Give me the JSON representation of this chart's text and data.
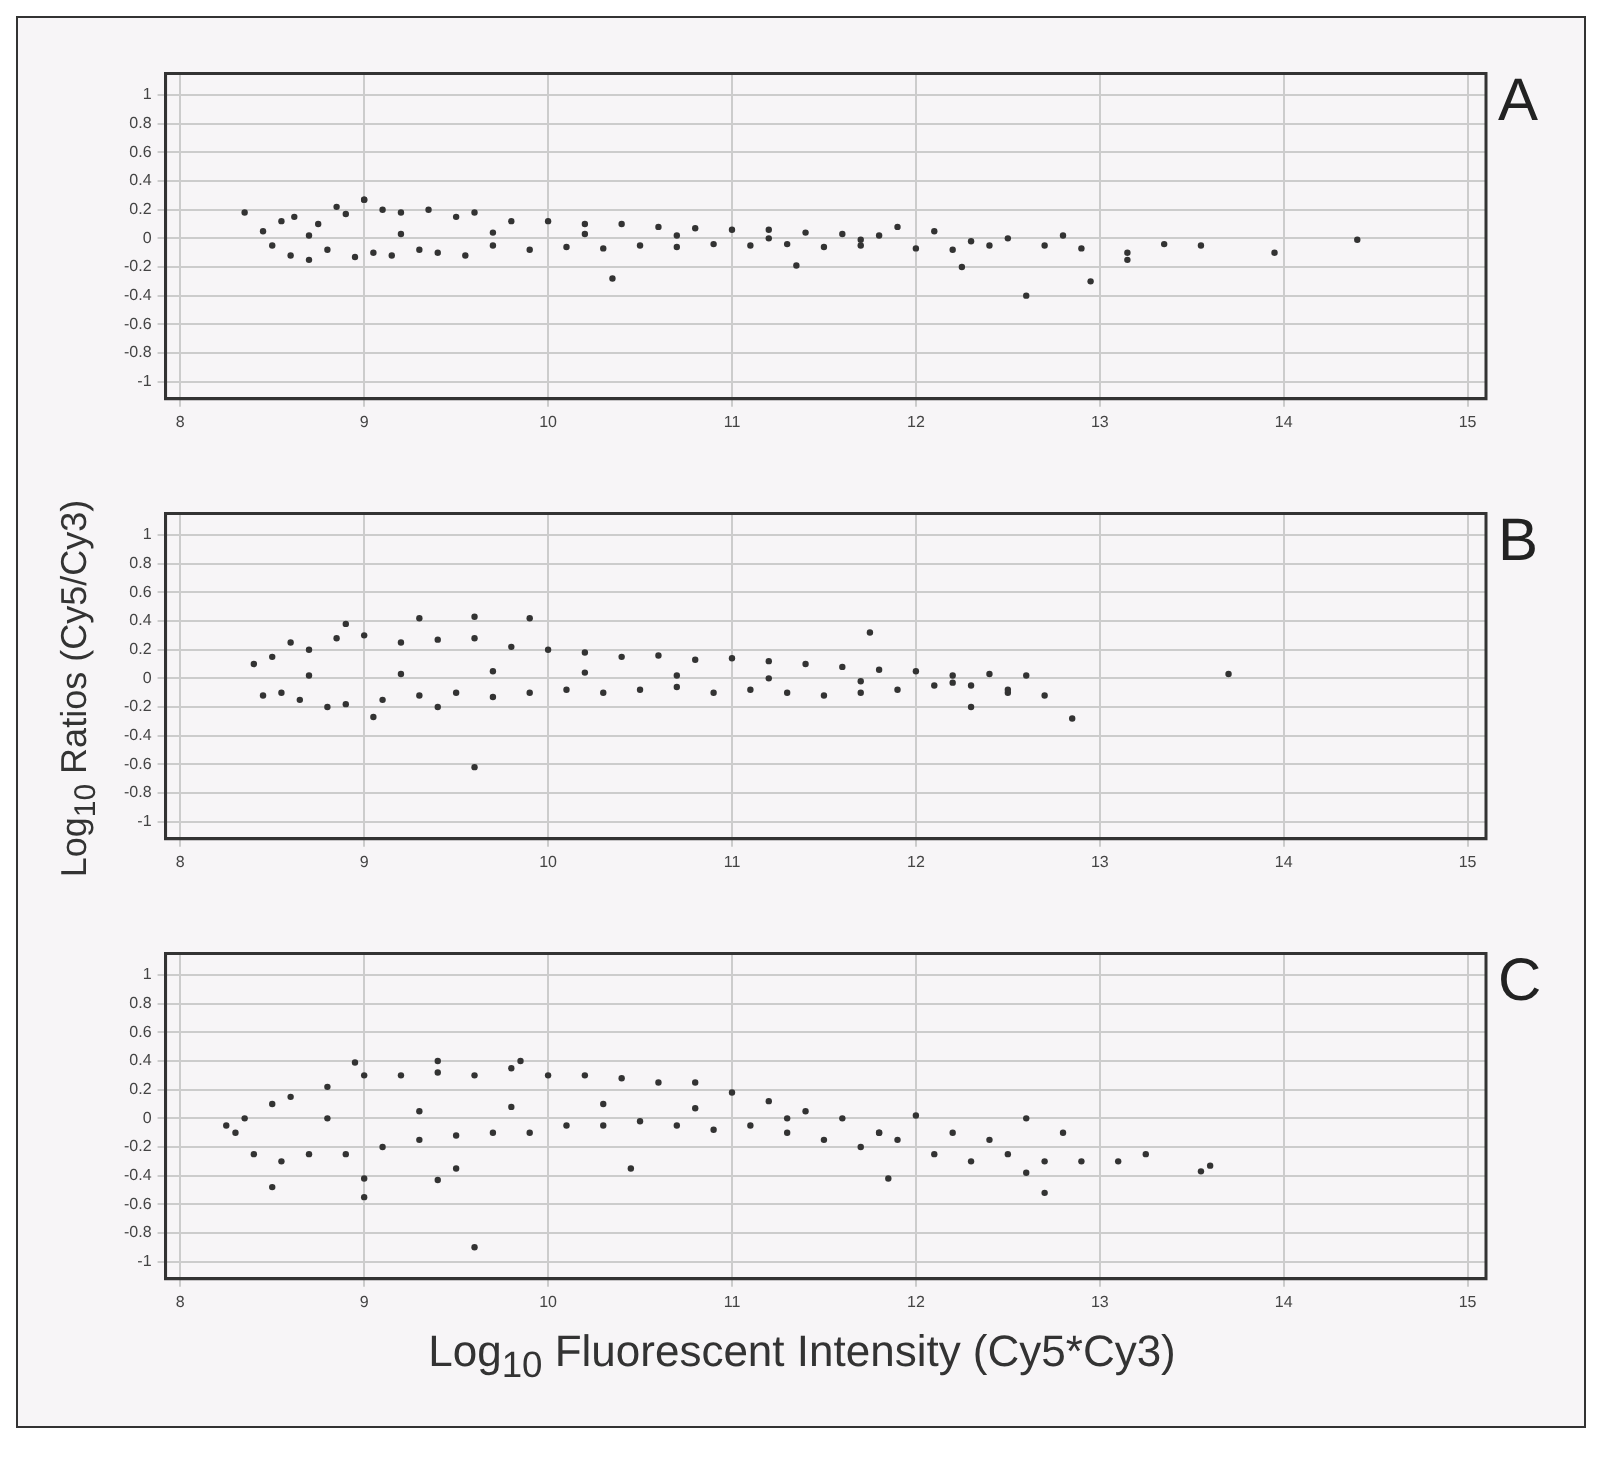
{
  "chart_data": [
    {
      "type": "scatter",
      "title": "A",
      "color": "#333333",
      "marker": "circle",
      "grid": true,
      "xlim": [
        7.92,
        15.1
      ],
      "xticks": [
        8,
        9,
        10,
        11,
        12,
        13,
        14,
        15
      ],
      "ylim": [
        -1.12,
        1.15
      ],
      "yticks": [
        -1,
        -0.8,
        -0.6,
        -0.4,
        -0.2,
        0,
        0.2,
        0.4,
        0.6,
        0.8,
        1
      ],
      "x": [
        8.45,
        8.5,
        8.55,
        8.6,
        8.62,
        8.7,
        8.75,
        8.8,
        8.85,
        8.9,
        8.95,
        9.0,
        9.05,
        9.1,
        9.15,
        9.2,
        9.3,
        9.35,
        9.4,
        9.5,
        9.55,
        9.6,
        9.7,
        9.8,
        9.9,
        10.0,
        10.1,
        10.2,
        10.3,
        10.4,
        10.5,
        10.6,
        10.7,
        10.8,
        10.9,
        11.0,
        11.1,
        11.2,
        11.3,
        11.4,
        11.5,
        11.6,
        11.7,
        11.8,
        11.9,
        12.0,
        12.1,
        12.2,
        12.3,
        12.4,
        12.5,
        12.7,
        12.8,
        12.9,
        8.7,
        9.2,
        9.7,
        10.2,
        10.7,
        11.2,
        11.7,
        8.35,
        9.0,
        10.35,
        11.35,
        12.25,
        12.6,
        12.95,
        13.15,
        13.15,
        13.35,
        13.55,
        13.95,
        14.4
      ],
      "values": [
        0.05,
        -0.05,
        0.12,
        -0.12,
        0.15,
        -0.15,
        0.1,
        -0.08,
        0.22,
        0.17,
        -0.13,
        0.27,
        -0.1,
        0.2,
        -0.12,
        0.18,
        -0.08,
        0.2,
        -0.1,
        0.15,
        -0.12,
        0.18,
        -0.05,
        0.12,
        -0.08,
        0.12,
        -0.06,
        0.1,
        -0.07,
        0.1,
        -0.05,
        0.08,
        -0.06,
        0.07,
        -0.04,
        0.06,
        -0.05,
        0.06,
        -0.04,
        0.04,
        -0.06,
        0.03,
        -0.05,
        0.02,
        0.08,
        -0.07,
        0.05,
        -0.08,
        -0.02,
        -0.05,
        0.0,
        -0.05,
        0.02,
        -0.07,
        0.02,
        0.03,
        0.04,
        0.03,
        0.02,
        0.0,
        -0.01,
        0.18,
        0.27,
        -0.28,
        -0.19,
        -0.2,
        -0.4,
        -0.3,
        -0.1,
        -0.15,
        -0.04,
        -0.05,
        -0.1,
        -0.01
      ]
    },
    {
      "type": "scatter",
      "title": "B",
      "ylabel": "Log$_{10}$ Ratios (Cy5/Cy3)",
      "color": "#333333",
      "marker": "circle",
      "grid": true,
      "xlim": [
        7.92,
        15.1
      ],
      "xticks": [
        8,
        9,
        10,
        11,
        12,
        13,
        14,
        15
      ],
      "ylim": [
        -1.12,
        1.15
      ],
      "yticks": [
        -1,
        -0.8,
        -0.6,
        -0.4,
        -0.2,
        0,
        0.2,
        0.4,
        0.6,
        0.8,
        1
      ],
      "x": [
        8.4,
        8.45,
        8.5,
        8.55,
        8.6,
        8.65,
        8.7,
        8.8,
        8.85,
        8.9,
        9.0,
        9.1,
        9.2,
        9.3,
        9.4,
        9.5,
        9.6,
        9.7,
        9.8,
        9.9,
        10.0,
        10.1,
        10.2,
        10.3,
        10.4,
        10.5,
        10.6,
        10.7,
        10.8,
        10.9,
        11.0,
        11.1,
        11.2,
        11.3,
        11.4,
        11.5,
        11.6,
        11.7,
        11.8,
        11.9,
        12.0,
        12.1,
        12.2,
        12.3,
        12.4,
        12.5,
        12.6,
        8.7,
        9.2,
        9.7,
        10.2,
        10.7,
        11.2,
        11.7,
        12.2,
        9.05,
        9.6,
        9.4,
        11.75,
        12.3,
        12.85,
        13.7,
        12.7,
        12.5,
        9.3,
        9.6,
        9.9,
        8.9
      ],
      "values": [
        0.1,
        -0.12,
        0.15,
        -0.1,
        0.25,
        -0.15,
        0.2,
        -0.2,
        0.28,
        -0.18,
        0.3,
        -0.15,
        0.25,
        -0.12,
        0.27,
        -0.1,
        0.28,
        -0.13,
        0.22,
        -0.1,
        0.2,
        -0.08,
        0.18,
        -0.1,
        0.15,
        -0.08,
        0.16,
        -0.06,
        0.13,
        -0.1,
        0.14,
        -0.08,
        0.12,
        -0.1,
        0.1,
        -0.12,
        0.08,
        -0.1,
        0.06,
        -0.08,
        0.05,
        -0.05,
        0.02,
        -0.05,
        0.03,
        -0.1,
        0.02,
        0.02,
        0.03,
        0.05,
        0.04,
        0.02,
        0.0,
        -0.02,
        -0.03,
        -0.27,
        -0.62,
        -0.2,
        0.32,
        -0.2,
        -0.28,
        0.03,
        -0.12,
        -0.08,
        0.42,
        0.43,
        0.42,
        0.38
      ]
    },
    {
      "type": "scatter",
      "title": "C",
      "xlabel": "Log$_{10}$ Fluorescent Intensity (Cy5*Cy3)",
      "color": "#333333",
      "marker": "circle",
      "grid": true,
      "xlim": [
        7.92,
        15.1
      ],
      "xticks": [
        8,
        9,
        10,
        11,
        12,
        13,
        14,
        15
      ],
      "ylim": [
        -1.12,
        1.15
      ],
      "yticks": [
        -1,
        -0.8,
        -0.6,
        -0.4,
        -0.2,
        0,
        0.2,
        0.4,
        0.6,
        0.8,
        1
      ],
      "x": [
        8.25,
        8.3,
        8.35,
        8.4,
        8.5,
        8.55,
        8.6,
        8.7,
        8.8,
        8.9,
        9.0,
        9.1,
        9.2,
        9.3,
        9.4,
        9.5,
        9.6,
        9.7,
        9.8,
        9.9,
        10.0,
        10.1,
        10.2,
        10.3,
        10.4,
        10.5,
        10.6,
        10.7,
        10.8,
        10.9,
        11.0,
        11.1,
        11.2,
        11.3,
        11.4,
        11.5,
        11.6,
        11.7,
        11.8,
        11.9,
        12.0,
        12.1,
        12.2,
        12.3,
        12.4,
        12.5,
        12.6,
        12.7,
        12.8,
        12.9,
        8.8,
        9.3,
        9.8,
        10.3,
        10.8,
        11.3,
        11.8,
        8.5,
        9.0,
        9.0,
        9.4,
        9.6,
        9.5,
        10.45,
        9.85,
        9.4,
        8.95,
        11.85,
        12.7,
        13.1,
        13.25,
        13.55,
        13.6,
        12.6
      ],
      "values": [
        -0.05,
        -0.1,
        0.0,
        -0.25,
        0.1,
        -0.3,
        0.15,
        -0.25,
        0.22,
        -0.25,
        0.3,
        -0.2,
        0.3,
        -0.15,
        0.32,
        -0.12,
        0.3,
        -0.1,
        0.35,
        -0.1,
        0.3,
        -0.05,
        0.3,
        -0.05,
        0.28,
        -0.02,
        0.25,
        -0.05,
        0.25,
        -0.08,
        0.18,
        -0.05,
        0.12,
        -0.1,
        0.05,
        -0.15,
        0.0,
        -0.2,
        -0.1,
        -0.15,
        0.02,
        -0.25,
        -0.1,
        -0.3,
        -0.15,
        -0.25,
        0.0,
        -0.3,
        -0.1,
        -0.3,
        0.0,
        0.05,
        0.08,
        0.1,
        0.07,
        0.0,
        -0.1,
        -0.48,
        -0.55,
        -0.42,
        -0.43,
        -0.9,
        -0.35,
        -0.35,
        0.4,
        0.4,
        0.39,
        -0.42,
        -0.52,
        -0.3,
        -0.25,
        -0.37,
        -0.33,
        -0.38
      ]
    }
  ]
}
